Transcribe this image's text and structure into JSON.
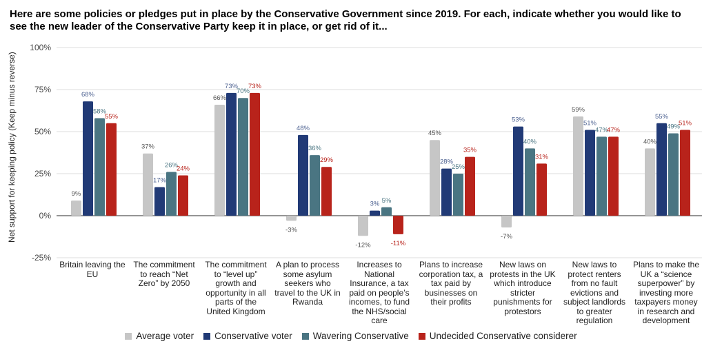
{
  "title": "Here are some policies or pledges put in place by the Conservative Government since 2019. For each, indicate whether you would like to see the new leader of the Conservative Party keep it in place, or get rid of it...",
  "chart_data": {
    "type": "bar",
    "title": "Here are some policies or pledges put in place by the Conservative Government since 2019. For each, indicate whether you would like to see the new leader of the Conservative Party keep it in place, or get rid of it...",
    "xlabel": "",
    "ylabel": "Net support for keeping policy (Keep minus reverse)",
    "ylim": [
      -25,
      100
    ],
    "yticks": [
      -25,
      0,
      25,
      50,
      75,
      100
    ],
    "ytick_labels": [
      "-25%",
      "0%",
      "25%",
      "50%",
      "75%",
      "100%"
    ],
    "grid": true,
    "legend_position": "bottom",
    "categories": [
      "Britain leaving the EU",
      "The commitment to reach “Net Zero” by 2050",
      "The commitment to “level up” growth and opportunity in all parts of the United Kingdom",
      "A plan to process some asylum seekers who travel to the UK in Rwanda",
      "Increases to National Insurance, a tax paid on people’s incomes, to fund the NHS/social care",
      "Plans to increase corporation tax, a tax paid by businesses on their profits",
      "New laws on protests in the UK which introduce stricter punishments for protestors",
      "New laws to protect renters from no fault evictions and subject landlords to greater regulation",
      "Plans to make the UK a “science superpower” by investing more taxpayers money in research and development"
    ],
    "series": [
      {
        "name": "Average voter",
        "color": "#c6c6c6",
        "label_color": "#555555",
        "values": [
          9,
          37,
          66,
          -3,
          -12,
          45,
          -7,
          59,
          40
        ]
      },
      {
        "name": "Conservative voter",
        "color": "#213a76",
        "label_color": "#4a5f8f",
        "values": [
          68,
          17,
          73,
          48,
          3,
          28,
          53,
          51,
          55
        ]
      },
      {
        "name": "Wavering Conservative",
        "color": "#4a7582",
        "label_color": "#4a7582",
        "values": [
          58,
          26,
          70,
          36,
          5,
          25,
          40,
          47,
          49
        ]
      },
      {
        "name": "Undecided Conservative considerer",
        "color": "#b8231b",
        "label_color": "#b8231b",
        "values": [
          55,
          24,
          73,
          29,
          -11,
          35,
          31,
          47,
          51
        ]
      }
    ],
    "value_suffix": "%"
  }
}
